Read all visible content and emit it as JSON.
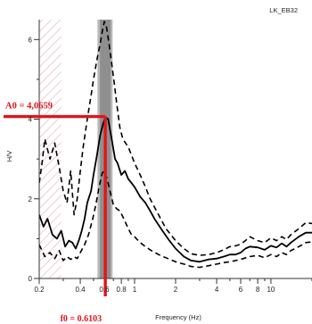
{
  "chart_data": {
    "type": "line",
    "station": "LK_EB32",
    "xlabel": "Frequency (Hz)",
    "ylabel": "H/V",
    "x_scale": "log",
    "xlim": [
      0.2,
      20
    ],
    "ylim": [
      0,
      6.5
    ],
    "yticks": [
      {
        "value": 0,
        "label": "0"
      },
      {
        "value": 2,
        "label": "2"
      },
      {
        "value": 4,
        "label": "4"
      },
      {
        "value": 6,
        "label": "6"
      }
    ],
    "xticks": [
      {
        "value": 0.2,
        "label": "0.2"
      },
      {
        "value": 0.4,
        "label": "0.4"
      },
      {
        "value": 0.6,
        "label": "0.6"
      },
      {
        "value": 0.8,
        "label": "0.8"
      },
      {
        "value": 1,
        "label": "1"
      },
      {
        "value": 2,
        "label": "2"
      },
      {
        "value": 4,
        "label": "4"
      },
      {
        "value": 6,
        "label": "6"
      },
      {
        "value": 8,
        "label": "8"
      },
      {
        "value": 10,
        "label": "10"
      }
    ],
    "hatched_region": {
      "x_from": 0.2,
      "x_to": 0.29
    },
    "peak_band": {
      "x_from": 0.535,
      "x_to": 0.69
    },
    "peak": {
      "f0": 0.6103,
      "A0": 4.0659,
      "f0_label": "f0 = 0.6103",
      "A0_label": "A0 = 4,0659"
    },
    "series": [
      {
        "role": "mean",
        "style": "solid",
        "x": [
          0.2,
          0.215,
          0.23,
          0.25,
          0.27,
          0.29,
          0.31,
          0.33,
          0.35,
          0.37,
          0.39,
          0.41,
          0.43,
          0.45,
          0.48,
          0.5,
          0.53,
          0.56,
          0.59,
          0.61,
          0.64,
          0.68,
          0.72,
          0.75,
          0.8,
          0.85,
          0.9,
          0.95,
          1.0,
          1.1,
          1.2,
          1.3,
          1.4,
          1.6,
          1.8,
          2.0,
          2.3,
          2.6,
          3.0,
          3.5,
          4.0,
          4.5,
          5.0,
          5.5,
          6.0,
          6.5,
          7.0,
          8.0,
          9.0,
          10.0,
          11.0,
          12.0,
          13.0,
          14.0,
          16.0,
          18.0,
          20.0
        ],
        "y": [
          1.6,
          1.3,
          1.5,
          1.1,
          1.0,
          1.2,
          0.8,
          0.95,
          0.9,
          0.75,
          0.95,
          1.2,
          1.5,
          1.9,
          2.2,
          2.6,
          3.1,
          3.6,
          3.9,
          4.05,
          4.0,
          3.5,
          3.0,
          2.9,
          2.6,
          2.7,
          2.5,
          2.4,
          2.3,
          2.05,
          1.9,
          1.7,
          1.5,
          1.2,
          0.95,
          0.75,
          0.55,
          0.45,
          0.42,
          0.48,
          0.5,
          0.55,
          0.6,
          0.6,
          0.65,
          0.75,
          0.8,
          0.78,
          0.72,
          0.82,
          0.78,
          0.88,
          0.8,
          0.9,
          1.05,
          1.15,
          1.15
        ]
      },
      {
        "role": "upper",
        "style": "dashed",
        "x": [
          0.2,
          0.21,
          0.22,
          0.24,
          0.26,
          0.28,
          0.3,
          0.32,
          0.34,
          0.36,
          0.38,
          0.4,
          0.42,
          0.45,
          0.48,
          0.5,
          0.53,
          0.56,
          0.58,
          0.6,
          0.62,
          0.65,
          0.68,
          0.71,
          0.74,
          0.78,
          0.82,
          0.86,
          0.9,
          0.95,
          1.0,
          1.1,
          1.2,
          1.3,
          1.5,
          1.7,
          2.0,
          2.3,
          2.6,
          3.0,
          3.5,
          4.0,
          4.5,
          5.0,
          5.5,
          6.0,
          6.5,
          7.0,
          8.0,
          9.0,
          10.0,
          11.0,
          12.0,
          13.0,
          14.0,
          16.0,
          18.0,
          20.0
        ],
        "y": [
          2.4,
          2.9,
          3.5,
          3.0,
          3.4,
          2.8,
          2.2,
          1.9,
          2.7,
          1.6,
          2.0,
          2.7,
          3.3,
          4.0,
          4.6,
          5.0,
          5.5,
          5.9,
          6.2,
          6.45,
          6.35,
          5.9,
          5.4,
          4.9,
          4.4,
          3.8,
          3.5,
          3.4,
          3.3,
          3.1,
          2.9,
          2.6,
          2.3,
          2.0,
          1.6,
          1.25,
          0.95,
          0.75,
          0.62,
          0.58,
          0.6,
          0.65,
          0.72,
          0.8,
          0.82,
          0.86,
          0.95,
          1.05,
          0.95,
          0.9,
          1.02,
          0.95,
          1.05,
          0.98,
          1.1,
          1.25,
          1.4,
          1.38
        ]
      },
      {
        "role": "lower",
        "style": "dashed",
        "x": [
          0.2,
          0.22,
          0.24,
          0.26,
          0.28,
          0.3,
          0.32,
          0.34,
          0.36,
          0.38,
          0.4,
          0.43,
          0.46,
          0.49,
          0.52,
          0.55,
          0.58,
          0.6,
          0.63,
          0.66,
          0.7,
          0.74,
          0.78,
          0.82,
          0.86,
          0.9,
          0.95,
          1.0,
          1.1,
          1.2,
          1.3,
          1.5,
          1.7,
          2.0,
          2.3,
          2.6,
          3.0,
          3.5,
          4.0,
          4.5,
          5.0,
          5.5,
          6.0,
          7.0,
          8.0,
          9.0,
          10.0,
          11.0,
          12.0,
          13.0,
          14.0,
          16.0,
          18.0,
          20.0
        ],
        "y": [
          0.85,
          0.55,
          0.65,
          0.5,
          0.7,
          0.45,
          0.55,
          0.48,
          0.55,
          0.5,
          0.65,
          0.85,
          1.1,
          1.45,
          1.85,
          2.3,
          2.65,
          2.7,
          2.5,
          2.2,
          1.85,
          1.75,
          1.7,
          1.55,
          1.4,
          1.25,
          1.1,
          1.05,
          0.9,
          0.8,
          0.72,
          0.6,
          0.52,
          0.42,
          0.36,
          0.3,
          0.28,
          0.32,
          0.36,
          0.4,
          0.42,
          0.45,
          0.48,
          0.55,
          0.58,
          0.52,
          0.6,
          0.55,
          0.65,
          0.6,
          0.7,
          0.8,
          0.9,
          0.92
        ]
      }
    ]
  }
}
